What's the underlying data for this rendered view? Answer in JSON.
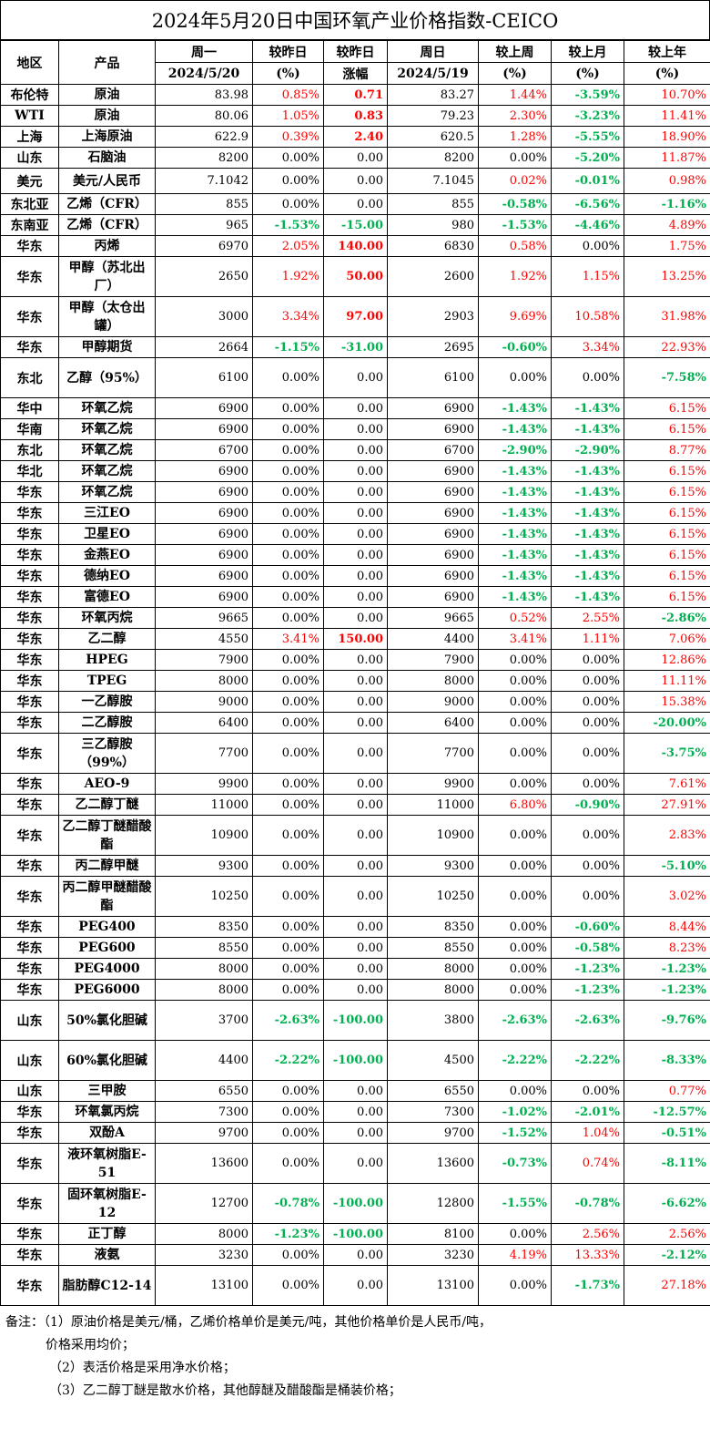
{
  "title": "2024年5月20日中国环氧产业价格指数-CEICO",
  "headers": {
    "region": "地区",
    "product": "产品",
    "monday": "周一",
    "monday_date": "2024/5/20",
    "chg_day_pct": "较昨日",
    "chg_day_pct_unit": "(%)",
    "chg_day_amt": "较昨日",
    "chg_day_amt_unit": "涨幅",
    "sunday": "周日",
    "sunday_date": "2024/5/19",
    "chg_week": "较上周",
    "chg_week_unit": "(%)",
    "chg_month": "较上月",
    "chg_month_unit": "(%)",
    "chg_year": "较上年",
    "chg_year_unit": "(%)"
  },
  "colors": {
    "up": "#ff0000",
    "down": "#00b050",
    "neutral": "#000000"
  },
  "rows": [
    {
      "h": 23,
      "region": "布伦特",
      "product": "原油",
      "mon": "83.98",
      "d_pct": "0.85%",
      "d_amt": "0.71",
      "sun": "83.27",
      "w": "1.44%",
      "m": "-3.59%",
      "y": "10.70%"
    },
    {
      "h": 23,
      "region": "WTI",
      "product": "原油",
      "mon": "80.06",
      "d_pct": "1.05%",
      "d_amt": "0.83",
      "sun": "79.23",
      "w": "2.30%",
      "m": "-3.23%",
      "y": "11.41%"
    },
    {
      "h": 23,
      "region": "上海",
      "product": "上海原油",
      "mon": "622.9",
      "d_pct": "0.39%",
      "d_amt": "2.40",
      "sun": "620.5",
      "w": "1.28%",
      "m": "-5.55%",
      "y": "18.90%"
    },
    {
      "h": 23,
      "region": "山东",
      "product": "石脑油",
      "mon": "8200",
      "d_pct": "0.00%",
      "d_amt": "0.00",
      "sun": "8200",
      "w": "0.00%",
      "m": "-5.20%",
      "y": "11.87%"
    },
    {
      "h": 28,
      "region": "美元",
      "product": "美元/人民币",
      "mon": "7.1042",
      "d_pct": "0.00%",
      "d_amt": "0.00",
      "sun": "7.1045",
      "w": "0.02%",
      "m": "-0.01%",
      "y": "0.98%"
    },
    {
      "h": 23,
      "region": "东北亚",
      "product": "乙烯（CFR）",
      "mon": "855",
      "d_pct": "0.00%",
      "d_amt": "0.00",
      "sun": "855",
      "w": "-0.58%",
      "m": "-6.56%",
      "y": "-1.16%"
    },
    {
      "h": 23,
      "region": "东南亚",
      "product": "乙烯（CFR）",
      "mon": "965",
      "d_pct": "-1.53%",
      "d_amt": "-15.00",
      "sun": "980",
      "w": "-1.53%",
      "m": "-4.46%",
      "y": "4.89%"
    },
    {
      "h": 23,
      "region": "华东",
      "product": "丙烯",
      "mon": "6970",
      "d_pct": "2.05%",
      "d_amt": "140.00",
      "sun": "6830",
      "w": "0.58%",
      "m": "0.00%",
      "y": "1.75%"
    },
    {
      "h": 44,
      "region": "华东",
      "product": "甲醇（苏北出厂）",
      "mon": "2650",
      "d_pct": "1.92%",
      "d_amt": "50.00",
      "sun": "2600",
      "w": "1.92%",
      "m": "1.15%",
      "y": "13.25%"
    },
    {
      "h": 44,
      "region": "华东",
      "product": "甲醇（太仓出罐）",
      "mon": "3000",
      "d_pct": "3.34%",
      "d_amt": "97.00",
      "sun": "2903",
      "w": "9.69%",
      "m": "10.58%",
      "y": "31.98%"
    },
    {
      "h": 23,
      "region": "华东",
      "product": "甲醇期货",
      "mon": "2664",
      "d_pct": "-1.15%",
      "d_amt": "-31.00",
      "sun": "2695",
      "w": "-0.60%",
      "m": "3.34%",
      "y": "22.93%"
    },
    {
      "h": 44,
      "region": "东北",
      "product": "乙醇（95%）",
      "mon": "6100",
      "d_pct": "0.00%",
      "d_amt": "0.00",
      "sun": "6100",
      "w": "0.00%",
      "m": "0.00%",
      "y": "-7.58%"
    },
    {
      "h": 23,
      "region": "华中",
      "product": "环氧乙烷",
      "mon": "6900",
      "d_pct": "0.00%",
      "d_amt": "0.00",
      "sun": "6900",
      "w": "-1.43%",
      "m": "-1.43%",
      "y": "6.15%"
    },
    {
      "h": 23,
      "region": "华南",
      "product": "环氧乙烷",
      "mon": "6900",
      "d_pct": "0.00%",
      "d_amt": "0.00",
      "sun": "6900",
      "w": "-1.43%",
      "m": "-1.43%",
      "y": "6.15%"
    },
    {
      "h": 23,
      "region": "东北",
      "product": "环氧乙烷",
      "mon": "6700",
      "d_pct": "0.00%",
      "d_amt": "0.00",
      "sun": "6700",
      "w": "-2.90%",
      "m": "-2.90%",
      "y": "8.77%"
    },
    {
      "h": 23,
      "region": "华北",
      "product": "环氧乙烷",
      "mon": "6900",
      "d_pct": "0.00%",
      "d_amt": "0.00",
      "sun": "6900",
      "w": "-1.43%",
      "m": "-1.43%",
      "y": "6.15%"
    },
    {
      "h": 23,
      "region": "华东",
      "product": "环氧乙烷",
      "mon": "6900",
      "d_pct": "0.00%",
      "d_amt": "0.00",
      "sun": "6900",
      "w": "-1.43%",
      "m": "-1.43%",
      "y": "6.15%"
    },
    {
      "h": 23,
      "region": "华东",
      "product": "三江EO",
      "mon": "6900",
      "d_pct": "0.00%",
      "d_amt": "0.00",
      "sun": "6900",
      "w": "-1.43%",
      "m": "-1.43%",
      "y": "6.15%"
    },
    {
      "h": 23,
      "region": "华东",
      "product": "卫星EO",
      "mon": "6900",
      "d_pct": "0.00%",
      "d_amt": "0.00",
      "sun": "6900",
      "w": "-1.43%",
      "m": "-1.43%",
      "y": "6.15%"
    },
    {
      "h": 23,
      "region": "华东",
      "product": "金燕EO",
      "mon": "6900",
      "d_pct": "0.00%",
      "d_amt": "0.00",
      "sun": "6900",
      "w": "-1.43%",
      "m": "-1.43%",
      "y": "6.15%"
    },
    {
      "h": 23,
      "region": "华东",
      "product": "德纳EO",
      "mon": "6900",
      "d_pct": "0.00%",
      "d_amt": "0.00",
      "sun": "6900",
      "w": "-1.43%",
      "m": "-1.43%",
      "y": "6.15%"
    },
    {
      "h": 23,
      "region": "华东",
      "product": "富德EO",
      "mon": "6900",
      "d_pct": "0.00%",
      "d_amt": "0.00",
      "sun": "6900",
      "w": "-1.43%",
      "m": "-1.43%",
      "y": "6.15%"
    },
    {
      "h": 23,
      "region": "华东",
      "product": "环氧丙烷",
      "mon": "9665",
      "d_pct": "0.00%",
      "d_amt": "0.00",
      "sun": "9665",
      "w": "0.52%",
      "m": "2.55%",
      "y": "-2.86%"
    },
    {
      "h": 23,
      "region": "华东",
      "product": "乙二醇",
      "mon": "4550",
      "d_pct": "3.41%",
      "d_amt": "150.00",
      "sun": "4400",
      "w": "3.41%",
      "m": "1.11%",
      "y": "7.06%"
    },
    {
      "h": 23,
      "region": "华东",
      "product": "HPEG",
      "mon": "7900",
      "d_pct": "0.00%",
      "d_amt": "0.00",
      "sun": "7900",
      "w": "0.00%",
      "m": "0.00%",
      "y": "12.86%"
    },
    {
      "h": 23,
      "region": "华东",
      "product": "TPEG",
      "mon": "8000",
      "d_pct": "0.00%",
      "d_amt": "0.00",
      "sun": "8000",
      "w": "0.00%",
      "m": "0.00%",
      "y": "11.11%"
    },
    {
      "h": 23,
      "region": "华东",
      "product": "一乙醇胺",
      "mon": "9000",
      "d_pct": "0.00%",
      "d_amt": "0.00",
      "sun": "9000",
      "w": "0.00%",
      "m": "0.00%",
      "y": "15.38%"
    },
    {
      "h": 23,
      "region": "华东",
      "product": "二乙醇胺",
      "mon": "6400",
      "d_pct": "0.00%",
      "d_amt": "0.00",
      "sun": "6400",
      "w": "0.00%",
      "m": "0.00%",
      "y": "-20.00%"
    },
    {
      "h": 44,
      "region": "华东",
      "product": "三乙醇胺（99%）",
      "mon": "7700",
      "d_pct": "0.00%",
      "d_amt": "0.00",
      "sun": "7700",
      "w": "0.00%",
      "m": "0.00%",
      "y": "-3.75%"
    },
    {
      "h": 23,
      "region": "华东",
      "product": "AEO-9",
      "mon": "9900",
      "d_pct": "0.00%",
      "d_amt": "0.00",
      "sun": "9900",
      "w": "0.00%",
      "m": "0.00%",
      "y": "7.61%"
    },
    {
      "h": 23,
      "region": "华东",
      "product": "乙二醇丁醚",
      "mon": "11000",
      "d_pct": "0.00%",
      "d_amt": "0.00",
      "sun": "11000",
      "w": "6.80%",
      "m": "-0.90%",
      "y": "27.91%"
    },
    {
      "h": 44,
      "region": "华东",
      "product": "乙二醇丁醚醋酸酯",
      "mon": "10900",
      "d_pct": "0.00%",
      "d_amt": "0.00",
      "sun": "10900",
      "w": "0.00%",
      "m": "0.00%",
      "y": "2.83%"
    },
    {
      "h": 23,
      "region": "华东",
      "product": "丙二醇甲醚",
      "mon": "9300",
      "d_pct": "0.00%",
      "d_amt": "0.00",
      "sun": "9300",
      "w": "0.00%",
      "m": "0.00%",
      "y": "-5.10%"
    },
    {
      "h": 44,
      "region": "华东",
      "product": "丙二醇甲醚醋酸酯",
      "mon": "10250",
      "d_pct": "0.00%",
      "d_amt": "0.00",
      "sun": "10250",
      "w": "0.00%",
      "m": "0.00%",
      "y": "3.02%"
    },
    {
      "h": 23,
      "region": "华东",
      "product": "PEG400",
      "mon": "8350",
      "d_pct": "0.00%",
      "d_amt": "0.00",
      "sun": "8350",
      "w": "0.00%",
      "m": "-0.60%",
      "y": "8.44%"
    },
    {
      "h": 23,
      "region": "华东",
      "product": "PEG600",
      "mon": "8550",
      "d_pct": "0.00%",
      "d_amt": "0.00",
      "sun": "8550",
      "w": "0.00%",
      "m": "-0.58%",
      "y": "8.23%"
    },
    {
      "h": 23,
      "region": "华东",
      "product": "PEG4000",
      "mon": "8000",
      "d_pct": "0.00%",
      "d_amt": "0.00",
      "sun": "8000",
      "w": "0.00%",
      "m": "-1.23%",
      "y": "-1.23%"
    },
    {
      "h": 23,
      "region": "华东",
      "product": "PEG6000",
      "mon": "8000",
      "d_pct": "0.00%",
      "d_amt": "0.00",
      "sun": "8000",
      "w": "0.00%",
      "m": "-1.23%",
      "y": "-1.23%"
    },
    {
      "h": 44,
      "region": "山东",
      "product": "50%氯化胆碱",
      "mon": "3700",
      "d_pct": "-2.63%",
      "d_amt": "-100.00",
      "sun": "3800",
      "w": "-2.63%",
      "m": "-2.63%",
      "y": "-9.76%"
    },
    {
      "h": 44,
      "region": "山东",
      "product": "60%氯化胆碱",
      "mon": "4400",
      "d_pct": "-2.22%",
      "d_amt": "-100.00",
      "sun": "4500",
      "w": "-2.22%",
      "m": "-2.22%",
      "y": "-8.33%"
    },
    {
      "h": 23,
      "region": "山东",
      "product": "三甲胺",
      "mon": "6550",
      "d_pct": "0.00%",
      "d_amt": "0.00",
      "sun": "6550",
      "w": "0.00%",
      "m": "0.00%",
      "y": "0.77%"
    },
    {
      "h": 23,
      "region": "华东",
      "product": "环氧氯丙烷",
      "mon": "7300",
      "d_pct": "0.00%",
      "d_amt": "0.00",
      "sun": "7300",
      "w": "-1.02%",
      "m": "-2.01%",
      "y": "-12.57%"
    },
    {
      "h": 23,
      "region": "华东",
      "product": "双酚A",
      "mon": "9700",
      "d_pct": "0.00%",
      "d_amt": "0.00",
      "sun": "9700",
      "w": "-1.52%",
      "m": "1.04%",
      "y": "-0.51%"
    },
    {
      "h": 44,
      "region": "华东",
      "product": "液环氧树脂E-51",
      "mon": "13600",
      "d_pct": "0.00%",
      "d_amt": "0.00",
      "sun": "13600",
      "w": "-0.73%",
      "m": "0.74%",
      "y": "-8.11%"
    },
    {
      "h": 44,
      "region": "华东",
      "product": "固环氧树脂E-12",
      "mon": "12700",
      "d_pct": "-0.78%",
      "d_amt": "-100.00",
      "sun": "12800",
      "w": "-1.55%",
      "m": "-0.78%",
      "y": "-6.62%"
    },
    {
      "h": 23,
      "region": "华东",
      "product": "正丁醇",
      "mon": "8000",
      "d_pct": "-1.23%",
      "d_amt": "-100.00",
      "sun": "8100",
      "w": "0.00%",
      "m": "2.56%",
      "y": "2.56%"
    },
    {
      "h": 23,
      "region": "华东",
      "product": "液氨",
      "mon": "3230",
      "d_pct": "0.00%",
      "d_amt": "0.00",
      "sun": "3230",
      "w": "4.19%",
      "m": "13.33%",
      "y": "-2.12%"
    },
    {
      "h": 44,
      "region": "华东",
      "product": "脂肪醇C12-14",
      "mon": "13100",
      "d_pct": "0.00%",
      "d_amt": "0.00",
      "sun": "13100",
      "w": "0.00%",
      "m": "-1.73%",
      "y": "27.18%"
    }
  ],
  "notes": {
    "line1": "备注：（1）原油价格是美元/桶，乙烯价格单价是美元/吨，其他价格单价是人民币/吨，",
    "line2": "价格采用均价；",
    "line3": "（2）表活价格是采用净水价格；",
    "line4": "（3）乙二醇丁醚是散水价格，其他醇醚及醋酸酯是桶装价格；"
  }
}
